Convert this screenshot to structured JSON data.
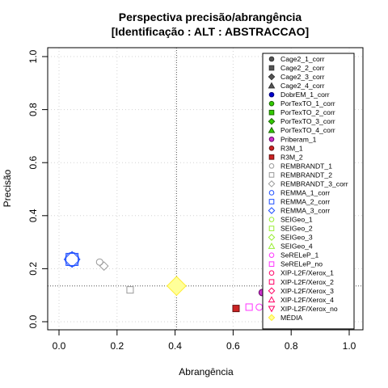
{
  "chart_data": {
    "type": "scatter",
    "title": "Perspectiva precisão/abrangência",
    "subtitle": "[Identificação : ALT : ABSTRACCAO]",
    "xlabel": "Abrangência",
    "ylabel": "Precisão",
    "xlim": [
      0,
      1
    ],
    "ylim": [
      0,
      1
    ],
    "xticks": [
      "0.0",
      "0.2",
      "0.4",
      "0.6",
      "0.8",
      "1.0"
    ],
    "yticks": [
      "0.0",
      "0.2",
      "0.4",
      "0.6",
      "0.8",
      "1.0"
    ],
    "grid": true,
    "legend_position": "right",
    "reference_lines": {
      "x": 0.405,
      "y": 0.135
    },
    "series": [
      {
        "name": "Cage2_1_corr",
        "symbol": "circle",
        "fill": "#555555",
        "stroke": "#333333",
        "points": []
      },
      {
        "name": "Cage2_2_corr",
        "symbol": "square",
        "fill": "#555555",
        "stroke": "#333333",
        "points": []
      },
      {
        "name": "Cage2_3_corr",
        "symbol": "diamond",
        "fill": "#555555",
        "stroke": "#333333",
        "points": []
      },
      {
        "name": "Cage2_4_corr",
        "symbol": "triangle",
        "fill": "#555555",
        "stroke": "#333333",
        "points": []
      },
      {
        "name": "DobrEM_1_corr",
        "symbol": "circle",
        "fill": "#0000cc",
        "stroke": "#00007a",
        "points": []
      },
      {
        "name": "PorTexTO_1_corr",
        "symbol": "circle",
        "fill": "#33cc00",
        "stroke": "#1a6600",
        "points": []
      },
      {
        "name": "PorTexTO_2_corr",
        "symbol": "square",
        "fill": "#33cc00",
        "stroke": "#1a6600",
        "points": []
      },
      {
        "name": "PorTexTO_3_corr",
        "symbol": "diamond",
        "fill": "#33cc00",
        "stroke": "#1a6600",
        "points": []
      },
      {
        "name": "PorTexTO_4_corr",
        "symbol": "triangle",
        "fill": "#33cc00",
        "stroke": "#1a6600",
        "points": []
      },
      {
        "name": "Priberam_1",
        "symbol": "circle",
        "fill": "#cc33cc",
        "stroke": "#660066",
        "points": [
          [
            0.7,
            0.11
          ]
        ]
      },
      {
        "name": "R3M_1",
        "symbol": "circle",
        "fill": "#cc2222",
        "stroke": "#661111",
        "points": []
      },
      {
        "name": "R3M_2",
        "symbol": "square",
        "fill": "#cc2222",
        "stroke": "#661111",
        "points": [
          [
            0.61,
            0.05
          ]
        ]
      },
      {
        "name": "REMBRANDT_1",
        "symbol": "circle",
        "fill": "none",
        "stroke": "#999999",
        "points": [
          [
            0.14,
            0.225
          ]
        ]
      },
      {
        "name": "REMBRANDT_2",
        "symbol": "square",
        "fill": "none",
        "stroke": "#999999",
        "points": [
          [
            0.245,
            0.12
          ]
        ]
      },
      {
        "name": "REMBRANDT_3_corr",
        "symbol": "diamond",
        "fill": "none",
        "stroke": "#999999",
        "points": [
          [
            0.155,
            0.21
          ]
        ]
      },
      {
        "name": "REMMA_1_corr",
        "symbol": "circle",
        "fill": "none",
        "stroke": "#1f4fff",
        "points": [
          [
            0.045,
            0.235
          ]
        ]
      },
      {
        "name": "REMMA_2_corr",
        "symbol": "square",
        "fill": "none",
        "stroke": "#1f4fff",
        "points": [
          [
            0.045,
            0.235
          ]
        ]
      },
      {
        "name": "REMMA_3_corr",
        "symbol": "diamond",
        "fill": "none",
        "stroke": "#1f4fff",
        "points": [
          [
            0.045,
            0.235
          ]
        ]
      },
      {
        "name": "SEIGeo_1",
        "symbol": "circle",
        "fill": "none",
        "stroke": "#99ee33",
        "points": []
      },
      {
        "name": "SEIGeo_2",
        "symbol": "square",
        "fill": "none",
        "stroke": "#99ee33",
        "points": []
      },
      {
        "name": "SEIGeo_3",
        "symbol": "diamond",
        "fill": "none",
        "stroke": "#99ee33",
        "points": []
      },
      {
        "name": "SEIGeo_4",
        "symbol": "triangle",
        "fill": "none",
        "stroke": "#99ee33",
        "points": []
      },
      {
        "name": "SeRELeP_1",
        "symbol": "circle",
        "fill": "none",
        "stroke": "#ff33ff",
        "points": [
          [
            0.69,
            0.055
          ]
        ]
      },
      {
        "name": "SeRELeP_no",
        "symbol": "square",
        "fill": "none",
        "stroke": "#ff33ff",
        "points": [
          [
            0.655,
            0.055
          ]
        ]
      },
      {
        "name": "XIP-L2F/Xerox_1",
        "symbol": "circle",
        "fill": "none",
        "stroke": "#ff0066",
        "points": []
      },
      {
        "name": "XIP-L2F/Xerox_2",
        "symbol": "square",
        "fill": "none",
        "stroke": "#ff0066",
        "points": []
      },
      {
        "name": "XIP-L2F/Xerox_3",
        "symbol": "diamond",
        "fill": "none",
        "stroke": "#ff0066",
        "points": []
      },
      {
        "name": "XIP-L2F/Xerox_4",
        "symbol": "triangle",
        "fill": "none",
        "stroke": "#ff0066",
        "points": []
      },
      {
        "name": "XIP-L2F/Xerox_no",
        "symbol": "triangle-down",
        "fill": "none",
        "stroke": "#ff0066",
        "points": []
      },
      {
        "name": "MÉDIA",
        "symbol": "diamond",
        "fill": "#ffff99",
        "stroke": "#ffee33",
        "big": true,
        "points": [
          [
            0.405,
            0.135
          ]
        ]
      }
    ]
  }
}
